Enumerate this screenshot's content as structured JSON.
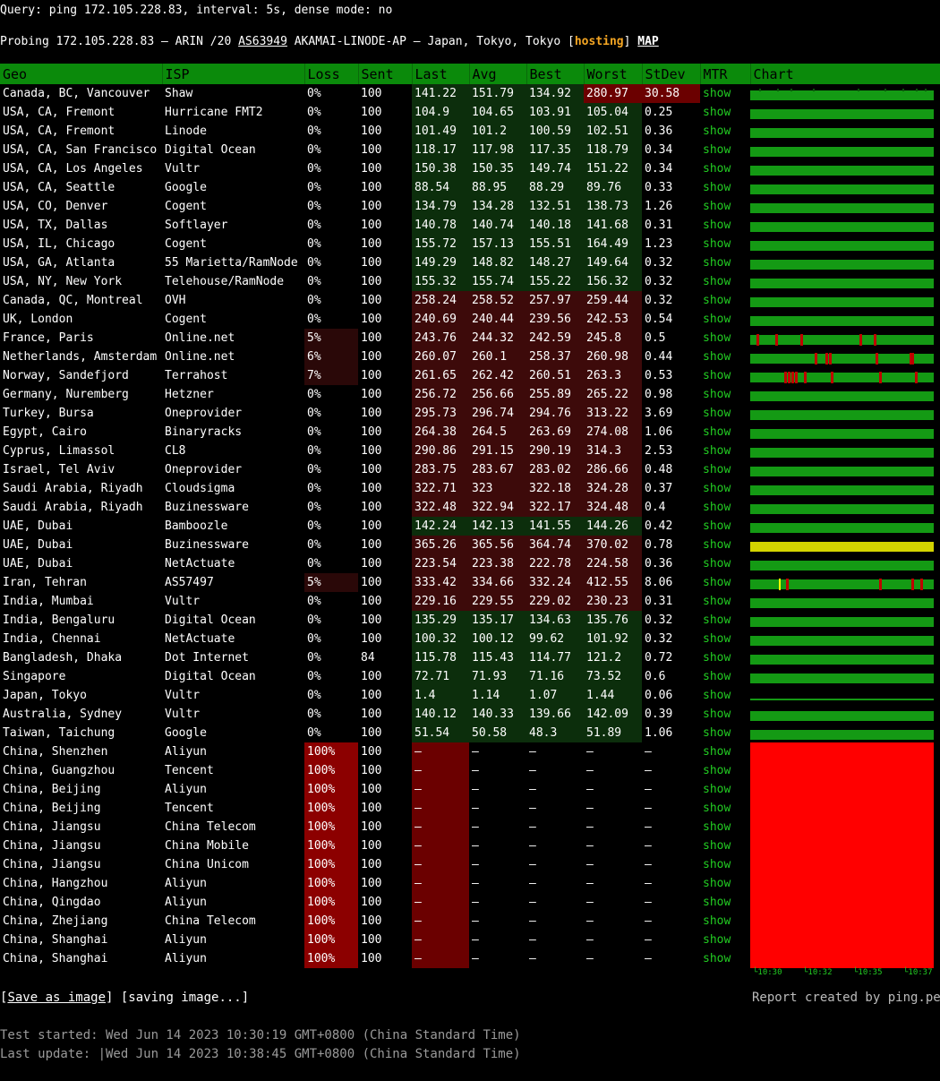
{
  "header": {
    "query": "Query: ping 172.105.228.83, interval: 5s, dense mode: no",
    "probe_prefix": "Probing 172.105.228.83 – ARIN /20 ",
    "asn": "AS63949",
    "probe_mid": " AKAMAI-LINODE-AP – Japan, Tokyo, Tokyo [",
    "hosting": "hosting",
    "probe_close": "] ",
    "map": "MAP"
  },
  "columns": [
    "Geo",
    "ISP",
    "Loss",
    "Sent",
    "Last",
    "Avg",
    "Best",
    "Worst",
    "StDev",
    "MTR",
    "Chart"
  ],
  "mtr_label": "show",
  "rows": [
    {
      "geo": "Canada, BC, Vancouver",
      "isp": "Shaw",
      "loss": "0%",
      "sent": "100",
      "last": "141.22",
      "avg": "151.79",
      "best": "134.92",
      "worst": "280.97",
      "stdev": "30.58",
      "chart": "green-noisy"
    },
    {
      "geo": "USA, CA, Fremont",
      "isp": "Hurricane FMT2",
      "loss": "0%",
      "sent": "100",
      "last": "104.9",
      "avg": "104.65",
      "best": "103.91",
      "worst": "105.04",
      "stdev": "0.25",
      "chart": "green"
    },
    {
      "geo": "USA, CA, Fremont",
      "isp": "Linode",
      "loss": "0%",
      "sent": "100",
      "last": "101.49",
      "avg": "101.2",
      "best": "100.59",
      "worst": "102.51",
      "stdev": "0.36",
      "chart": "green"
    },
    {
      "geo": "USA, CA, San Francisco",
      "isp": "Digital Ocean",
      "loss": "0%",
      "sent": "100",
      "last": "118.17",
      "avg": "117.98",
      "best": "117.35",
      "worst": "118.79",
      "stdev": "0.34",
      "chart": "green"
    },
    {
      "geo": "USA, CA, Los Angeles",
      "isp": "Vultr",
      "loss": "0%",
      "sent": "100",
      "last": "150.38",
      "avg": "150.35",
      "best": "149.74",
      "worst": "151.22",
      "stdev": "0.34",
      "chart": "green"
    },
    {
      "geo": "USA, CA, Seattle",
      "isp": "Google",
      "loss": "0%",
      "sent": "100",
      "last": "88.54",
      "avg": "88.95",
      "best": "88.29",
      "worst": "89.76",
      "stdev": "0.33",
      "chart": "green"
    },
    {
      "geo": "USA, CO, Denver",
      "isp": "Cogent",
      "loss": "0%",
      "sent": "100",
      "last": "134.79",
      "avg": "134.28",
      "best": "132.51",
      "worst": "138.73",
      "stdev": "1.26",
      "chart": "green"
    },
    {
      "geo": "USA, TX, Dallas",
      "isp": "Softlayer",
      "loss": "0%",
      "sent": "100",
      "last": "140.78",
      "avg": "140.74",
      "best": "140.18",
      "worst": "141.68",
      "stdev": "0.31",
      "chart": "green"
    },
    {
      "geo": "USA, IL, Chicago",
      "isp": "Cogent",
      "loss": "0%",
      "sent": "100",
      "last": "155.72",
      "avg": "157.13",
      "best": "155.51",
      "worst": "164.49",
      "stdev": "1.23",
      "chart": "green"
    },
    {
      "geo": "USA, GA, Atlanta",
      "isp": "55 Marietta/RamNode",
      "loss": "0%",
      "sent": "100",
      "last": "149.29",
      "avg": "148.82",
      "best": "148.27",
      "worst": "149.64",
      "stdev": "0.32",
      "chart": "green"
    },
    {
      "geo": "USA, NY, New York",
      "isp": "Telehouse/RamNode",
      "loss": "0%",
      "sent": "100",
      "last": "155.32",
      "avg": "155.74",
      "best": "155.22",
      "worst": "156.32",
      "stdev": "0.32",
      "chart": "green"
    },
    {
      "geo": "Canada, QC, Montreal",
      "isp": "OVH",
      "loss": "0%",
      "sent": "100",
      "last": "258.24",
      "avg": "258.52",
      "best": "257.97",
      "worst": "259.44",
      "stdev": "0.32",
      "chart": "green"
    },
    {
      "geo": "UK, London",
      "isp": "Cogent",
      "loss": "0%",
      "sent": "100",
      "last": "240.69",
      "avg": "240.44",
      "best": "239.56",
      "worst": "242.53",
      "stdev": "0.54",
      "chart": "green"
    },
    {
      "geo": "France, Paris",
      "isp": "Online.net",
      "loss": "5%",
      "sent": "100",
      "last": "243.76",
      "avg": "244.32",
      "best": "242.59",
      "worst": "245.8",
      "stdev": "0.5",
      "chart": "green-loss-a"
    },
    {
      "geo": "Netherlands, Amsterdam",
      "isp": "Online.net",
      "loss": "6%",
      "sent": "100",
      "last": "260.07",
      "avg": "260.1",
      "best": "258.37",
      "worst": "260.98",
      "stdev": "0.44",
      "chart": "green-loss-b"
    },
    {
      "geo": "Norway, Sandefjord",
      "isp": "Terrahost",
      "loss": "7%",
      "sent": "100",
      "last": "261.65",
      "avg": "262.42",
      "best": "260.51",
      "worst": "263.3",
      "stdev": "0.53",
      "chart": "green-loss-c"
    },
    {
      "geo": "Germany, Nuremberg",
      "isp": "Hetzner",
      "loss": "0%",
      "sent": "100",
      "last": "256.72",
      "avg": "256.66",
      "best": "255.89",
      "worst": "265.22",
      "stdev": "0.98",
      "chart": "green"
    },
    {
      "geo": "Turkey, Bursa",
      "isp": "Oneprovider",
      "loss": "0%",
      "sent": "100",
      "last": "295.73",
      "avg": "296.74",
      "best": "294.76",
      "worst": "313.22",
      "stdev": "3.69",
      "chart": "green"
    },
    {
      "geo": "Egypt, Cairo",
      "isp": "Binaryracks",
      "loss": "0%",
      "sent": "100",
      "last": "264.38",
      "avg": "264.5",
      "best": "263.69",
      "worst": "274.08",
      "stdev": "1.06",
      "chart": "green"
    },
    {
      "geo": "Cyprus, Limassol",
      "isp": "CL8",
      "loss": "0%",
      "sent": "100",
      "last": "290.86",
      "avg": "291.15",
      "best": "290.19",
      "worst": "314.3",
      "stdev": "2.53",
      "chart": "green"
    },
    {
      "geo": "Israel, Tel Aviv",
      "isp": "Oneprovider",
      "loss": "0%",
      "sent": "100",
      "last": "283.75",
      "avg": "283.67",
      "best": "283.02",
      "worst": "286.66",
      "stdev": "0.48",
      "chart": "green"
    },
    {
      "geo": "Saudi Arabia, Riyadh",
      "isp": "Cloudsigma",
      "loss": "0%",
      "sent": "100",
      "last": "322.71",
      "avg": "323",
      "best": "322.18",
      "worst": "324.28",
      "stdev": "0.37",
      "chart": "green"
    },
    {
      "geo": "Saudi Arabia, Riyadh",
      "isp": "Buzinessware",
      "loss": "0%",
      "sent": "100",
      "last": "322.48",
      "avg": "322.94",
      "best": "322.17",
      "worst": "324.48",
      "stdev": "0.4",
      "chart": "green"
    },
    {
      "geo": "UAE, Dubai",
      "isp": "Bamboozle",
      "loss": "0%",
      "sent": "100",
      "last": "142.24",
      "avg": "142.13",
      "best": "141.55",
      "worst": "144.26",
      "stdev": "0.42",
      "chart": "green"
    },
    {
      "geo": "UAE, Dubai",
      "isp": "Buzinessware",
      "loss": "0%",
      "sent": "100",
      "last": "365.26",
      "avg": "365.56",
      "best": "364.74",
      "worst": "370.02",
      "stdev": "0.78",
      "chart": "yellow"
    },
    {
      "geo": "UAE, Dubai",
      "isp": "NetActuate",
      "loss": "0%",
      "sent": "100",
      "last": "223.54",
      "avg": "223.38",
      "best": "222.78",
      "worst": "224.58",
      "stdev": "0.36",
      "chart": "green"
    },
    {
      "geo": "Iran, Tehran",
      "isp": "AS57497",
      "loss": "5%",
      "sent": "100",
      "last": "333.42",
      "avg": "334.66",
      "best": "332.24",
      "worst": "412.55",
      "stdev": "8.06",
      "chart": "green-loss-d"
    },
    {
      "geo": "India, Mumbai",
      "isp": "Vultr",
      "loss": "0%",
      "sent": "100",
      "last": "229.16",
      "avg": "229.55",
      "best": "229.02",
      "worst": "230.23",
      "stdev": "0.31",
      "chart": "green"
    },
    {
      "geo": "India, Bengaluru",
      "isp": "Digital Ocean",
      "loss": "0%",
      "sent": "100",
      "last": "135.29",
      "avg": "135.17",
      "best": "134.63",
      "worst": "135.76",
      "stdev": "0.32",
      "chart": "green"
    },
    {
      "geo": "India, Chennai",
      "isp": "NetActuate",
      "loss": "0%",
      "sent": "100",
      "last": "100.32",
      "avg": "100.12",
      "best": "99.62",
      "worst": "101.92",
      "stdev": "0.32",
      "chart": "green"
    },
    {
      "geo": "Bangladesh, Dhaka",
      "isp": "Dot Internet",
      "loss": "0%",
      "sent": "84",
      "last": "115.78",
      "avg": "115.43",
      "best": "114.77",
      "worst": "121.2",
      "stdev": "0.72",
      "chart": "green"
    },
    {
      "geo": "Singapore",
      "isp": "Digital Ocean",
      "loss": "0%",
      "sent": "100",
      "last": "72.71",
      "avg": "71.93",
      "best": "71.16",
      "worst": "73.52",
      "stdev": "0.6",
      "chart": "green"
    },
    {
      "geo": "Japan, Tokyo",
      "isp": "Vultr",
      "loss": "0%",
      "sent": "100",
      "last": "1.4",
      "avg": "1.14",
      "best": "1.07",
      "worst": "1.44",
      "stdev": "0.06",
      "chart": "thin"
    },
    {
      "geo": "Australia, Sydney",
      "isp": "Vultr",
      "loss": "0%",
      "sent": "100",
      "last": "140.12",
      "avg": "140.33",
      "best": "139.66",
      "worst": "142.09",
      "stdev": "0.39",
      "chart": "green"
    },
    {
      "geo": "Taiwan, Taichung",
      "isp": "Google",
      "loss": "0%",
      "sent": "100",
      "last": "51.54",
      "avg": "50.58",
      "best": "48.3",
      "worst": "51.89",
      "stdev": "1.06",
      "chart": "green"
    },
    {
      "geo": "China, Shenzhen",
      "isp": "Aliyun",
      "loss": "100%",
      "sent": "100",
      "last": "–",
      "avg": "–",
      "best": "–",
      "worst": "–",
      "stdev": "–",
      "chart": "red"
    },
    {
      "geo": "China, Guangzhou",
      "isp": "Tencent",
      "loss": "100%",
      "sent": "100",
      "last": "–",
      "avg": "–",
      "best": "–",
      "worst": "–",
      "stdev": "–",
      "chart": "red"
    },
    {
      "geo": "China, Beijing",
      "isp": "Aliyun",
      "loss": "100%",
      "sent": "100",
      "last": "–",
      "avg": "–",
      "best": "–",
      "worst": "–",
      "stdev": "–",
      "chart": "red"
    },
    {
      "geo": "China, Beijing",
      "isp": "Tencent",
      "loss": "100%",
      "sent": "100",
      "last": "–",
      "avg": "–",
      "best": "–",
      "worst": "–",
      "stdev": "–",
      "chart": "red"
    },
    {
      "geo": "China, Jiangsu",
      "isp": "China Telecom",
      "loss": "100%",
      "sent": "100",
      "last": "–",
      "avg": "–",
      "best": "–",
      "worst": "–",
      "stdev": "–",
      "chart": "red"
    },
    {
      "geo": "China, Jiangsu",
      "isp": "China Mobile",
      "loss": "100%",
      "sent": "100",
      "last": "–",
      "avg": "–",
      "best": "–",
      "worst": "–",
      "stdev": "–",
      "chart": "red"
    },
    {
      "geo": "China, Jiangsu",
      "isp": "China Unicom",
      "loss": "100%",
      "sent": "100",
      "last": "–",
      "avg": "–",
      "best": "–",
      "worst": "–",
      "stdev": "–",
      "chart": "red"
    },
    {
      "geo": "China, Hangzhou",
      "isp": "Aliyun",
      "loss": "100%",
      "sent": "100",
      "last": "–",
      "avg": "–",
      "best": "–",
      "worst": "–",
      "stdev": "–",
      "chart": "red"
    },
    {
      "geo": "China, Qingdao",
      "isp": "Aliyun",
      "loss": "100%",
      "sent": "100",
      "last": "–",
      "avg": "–",
      "best": "–",
      "worst": "–",
      "stdev": "–",
      "chart": "red"
    },
    {
      "geo": "China, Zhejiang",
      "isp": "China Telecom",
      "loss": "100%",
      "sent": "100",
      "last": "–",
      "avg": "–",
      "best": "–",
      "worst": "–",
      "stdev": "–",
      "chart": "red"
    },
    {
      "geo": "China, Shanghai",
      "isp": "Aliyun",
      "loss": "100%",
      "sent": "100",
      "last": "–",
      "avg": "–",
      "best": "–",
      "worst": "–",
      "stdev": "–",
      "chart": "red"
    },
    {
      "geo": "China, Shanghai",
      "isp": "Aliyun",
      "loss": "100%",
      "sent": "100",
      "last": "–",
      "avg": "–",
      "best": "–",
      "worst": "–",
      "stdev": "–",
      "chart": "red"
    }
  ],
  "chart_axis": [
    "└10:30",
    "└10:32",
    "└10:35",
    "└10:37"
  ],
  "footer": {
    "save_open": "[",
    "save_link": "Save as image",
    "save_close": "] [saving image...]",
    "credit": "Report created by ping.pe",
    "started": "Test started: Wed Jun 14 2023 10:30:19 GMT+0800 (China Standard Time)",
    "updated": "Last update: |Wed Jun 14 2023 10:38:45 GMT+0800 (China Standard Time)"
  },
  "colors": {
    "header_bg": "#0b8a0b",
    "good": "#149a14",
    "loss": "#ff0000",
    "warn": "#d4d400",
    "hosting": "#f5a623"
  }
}
